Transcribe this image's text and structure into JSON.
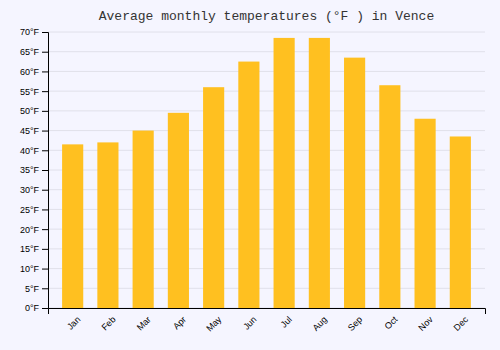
{
  "chart_data": {
    "type": "bar",
    "title": "Average monthly temperatures (°F ) in Vence",
    "categories": [
      "Jan",
      "Feb",
      "Mar",
      "Apr",
      "May",
      "Jun",
      "Jul",
      "Aug",
      "Sep",
      "Oct",
      "Nov",
      "Dec"
    ],
    "values": [
      41.5,
      42.0,
      45.0,
      49.5,
      56.0,
      62.5,
      68.5,
      68.5,
      63.5,
      56.5,
      48.0,
      43.5
    ],
    "color": "#FFC020",
    "ylim": [
      0,
      70
    ],
    "yticks": [
      {
        "value": 0,
        "label": "0°F"
      },
      {
        "value": 5,
        "label": "5°F"
      },
      {
        "value": 10,
        "label": "10°F"
      },
      {
        "value": 15,
        "label": "15°F"
      },
      {
        "value": 20,
        "label": "20°F"
      },
      {
        "value": 25,
        "label": "25°F"
      },
      {
        "value": 30,
        "label": "30°F"
      },
      {
        "value": 35,
        "label": "35°F"
      },
      {
        "value": 40,
        "label": "40°F"
      },
      {
        "value": 45,
        "label": "45°F"
      },
      {
        "value": 50,
        "label": "50°F"
      },
      {
        "value": 55,
        "label": "55°F"
      },
      {
        "value": 60,
        "label": "60°F"
      },
      {
        "value": 65,
        "label": "65°F"
      },
      {
        "value": 70,
        "label": "70°F"
      }
    ],
    "grid": true
  }
}
